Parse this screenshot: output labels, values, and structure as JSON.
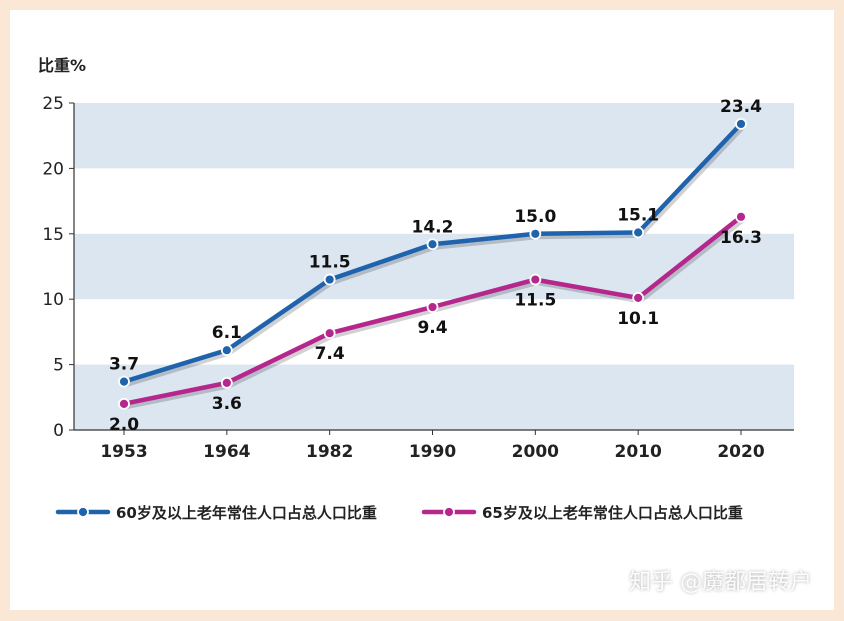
{
  "chart_data": {
    "type": "line",
    "ylabel": "比重%",
    "xlabel": "",
    "categories": [
      "1953",
      "1964",
      "1982",
      "1990",
      "2000",
      "2010",
      "2020"
    ],
    "ylim": [
      0,
      25
    ],
    "yticks": [
      0,
      5,
      10,
      15,
      20,
      25
    ],
    "legend_position": "bottom",
    "band_color": "#dbe6f1",
    "series": [
      {
        "name": "60岁及以上老年常住人口占总人口比重",
        "color": "#1f63ad",
        "values": [
          3.7,
          6.1,
          11.5,
          14.2,
          15.0,
          15.1,
          23.4
        ],
        "labels": [
          "3.7",
          "6.1",
          "11.5",
          "14.2",
          "15.0",
          "15.1",
          "23.4"
        ]
      },
      {
        "name": "65岁及以上老年常住人口占总人口比重",
        "color": "#b5278c",
        "values": [
          2.0,
          3.6,
          7.4,
          9.4,
          11.5,
          10.1,
          16.3
        ],
        "labels": [
          "2.0",
          "3.6",
          "7.4",
          "9.4",
          "11.5",
          "10.1",
          "16.3"
        ]
      }
    ]
  },
  "watermark": "知乎 @魔都居转户"
}
